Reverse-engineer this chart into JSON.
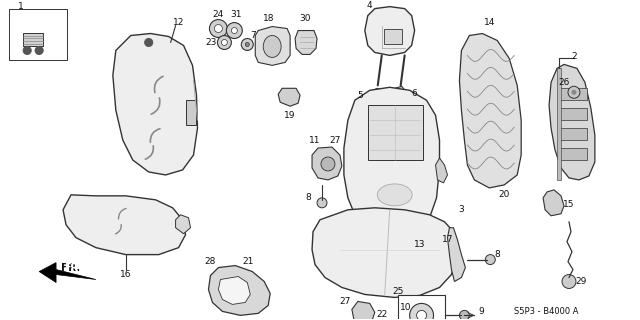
{
  "bg_color": "#ffffff",
  "diagram_code": "S5P3 - B4000 A",
  "line_color": "#333333",
  "text_color": "#111111",
  "font_size": 6.5,
  "figsize": [
    6.4,
    3.2
  ],
  "dpi": 100
}
